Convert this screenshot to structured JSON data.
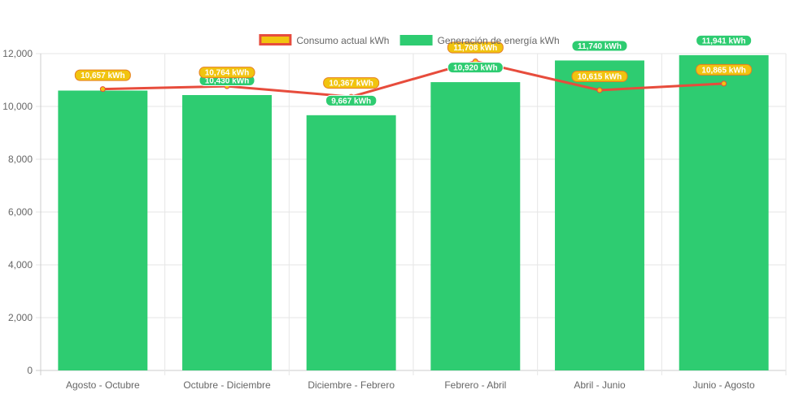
{
  "chart_data": {
    "type": "bar",
    "categories": [
      "Agosto - Octubre",
      "Octubre - Diciembre",
      "Diciembre - Febrero",
      "Febrero - Abril",
      "Abril - Junio",
      "Junio - Agosto"
    ],
    "series": [
      {
        "name": "Generación de energía kWh",
        "kind": "bar",
        "color": "#2ecc71",
        "values": [
          10600,
          10430,
          9667,
          10920,
          11740,
          11941
        ],
        "labels": [
          "",
          "10,430 kWh",
          "9,667 kWh",
          "10,920 kWh",
          "11,740 kWh",
          "11,941 kWh"
        ]
      },
      {
        "name": "Consumo actual kWh",
        "kind": "line",
        "color": "#e74c3c",
        "marker_color": "#f1c40f",
        "values": [
          10657,
          10764,
          10367,
          11708,
          10615,
          10865
        ],
        "labels": [
          "10,657 kWh",
          "10,764 kWh",
          "10,367 kWh",
          "11,708 kWh",
          "10,615 kWh",
          "10,865 kWh"
        ]
      }
    ],
    "ylim": [
      0,
      12000
    ],
    "yticks": [
      0,
      2000,
      4000,
      6000,
      8000,
      10000,
      12000
    ],
    "ytick_labels": [
      "0",
      "2,000",
      "4,000",
      "6,000",
      "8,000",
      "10,000",
      "12,000"
    ],
    "grid": true,
    "legend_position": "top-center",
    "title": "",
    "xlabel": "",
    "ylabel": ""
  }
}
